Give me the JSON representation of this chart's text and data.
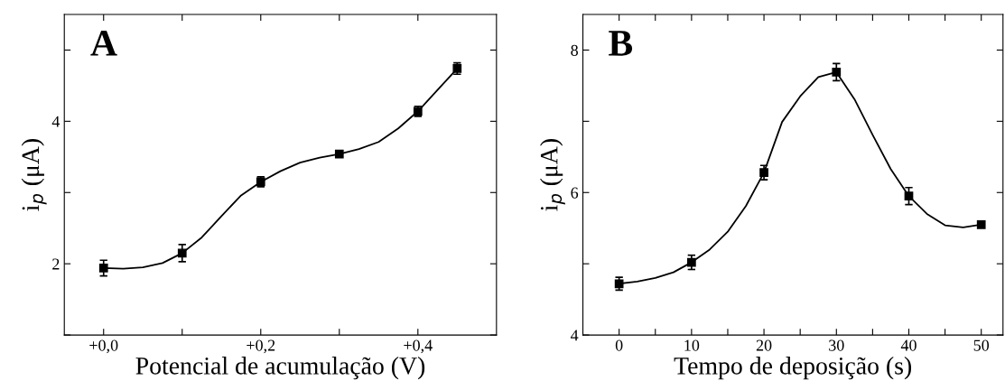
{
  "chart_data": [
    {
      "type": "scatter",
      "xlabel": "Potencial de acumulação (V)",
      "ylabel": "i$_{p}$ (μA)",
      "annotations": [
        "A"
      ],
      "line_style": "solid",
      "grid": false,
      "legend": false,
      "x": [
        0.0,
        0.1,
        0.2,
        0.3,
        0.4,
        0.45
      ],
      "series": [
        {
          "marker": "square",
          "color": "#000000",
          "values": [
            1.94,
            2.15,
            3.15,
            3.54,
            4.14,
            4.74
          ],
          "errors": [
            0.11,
            0.12,
            0.07,
            0.03,
            0.07,
            0.08
          ]
        },
        {
          "type": "line",
          "color": "#000000",
          "x": [
            0.0,
            0.025,
            0.05,
            0.075,
            0.1,
            0.125,
            0.15,
            0.175,
            0.2,
            0.225,
            0.25,
            0.275,
            0.3,
            0.325,
            0.35,
            0.375,
            0.4,
            0.425,
            0.45
          ],
          "values": [
            1.94,
            1.93,
            1.95,
            2.01,
            2.15,
            2.37,
            2.67,
            2.96,
            3.15,
            3.3,
            3.42,
            3.49,
            3.54,
            3.61,
            3.71,
            3.9,
            4.14,
            4.44,
            4.74
          ]
        }
      ],
      "xlim": [
        -0.05,
        0.5
      ],
      "ylim": [
        1.0,
        5.5
      ],
      "xticks": [
        {
          "value": 0.0,
          "label": "+0,0"
        },
        {
          "value": 0.1,
          "label": null
        },
        {
          "value": 0.2,
          "label": "+0,2"
        },
        {
          "value": 0.3,
          "label": null
        },
        {
          "value": 0.4,
          "label": "+0,4"
        }
      ],
      "yticks": [
        {
          "value": 1,
          "label": null
        },
        2,
        {
          "value": 3,
          "label": null
        },
        4,
        {
          "value": 5,
          "label": null
        }
      ]
    },
    {
      "type": "scatter",
      "xlabel": "Tempo de deposição (s)",
      "ylabel": "i$_{p}$ (μA)",
      "annotations": [
        "B"
      ],
      "line_style": "solid",
      "grid": false,
      "legend": false,
      "x": [
        0,
        10,
        20,
        30,
        40,
        50
      ],
      "series": [
        {
          "marker": "square",
          "color": "#000000",
          "values": [
            4.72,
            5.02,
            6.28,
            7.69,
            5.95,
            5.55
          ],
          "errors": [
            0.09,
            0.1,
            0.1,
            0.12,
            0.12,
            0.04
          ]
        },
        {
          "type": "line",
          "color": "#000000",
          "x": [
            0,
            2.5,
            5,
            7.5,
            10,
            12.5,
            15,
            17.5,
            20,
            22.5,
            25,
            27.5,
            30,
            32.5,
            35,
            37.5,
            40,
            42.5,
            45,
            47.5,
            50
          ],
          "values": [
            4.72,
            4.75,
            4.8,
            4.88,
            5.02,
            5.2,
            5.45,
            5.81,
            6.28,
            6.99,
            7.35,
            7.62,
            7.69,
            7.31,
            6.81,
            6.33,
            5.95,
            5.7,
            5.54,
            5.51,
            5.55
          ]
        }
      ],
      "xlim": [
        -5,
        53
      ],
      "ylim": [
        4,
        8.5
      ],
      "xticks": [
        0,
        {
          "value": 5,
          "label": null
        },
        10,
        {
          "value": 15,
          "label": null
        },
        20,
        {
          "value": 25,
          "label": null
        },
        30,
        {
          "value": 35,
          "label": null
        },
        40,
        {
          "value": 45,
          "label": null
        },
        50
      ],
      "yticks": [
        4,
        {
          "value": 5,
          "label": null
        },
        6,
        {
          "value": 7,
          "label": null
        },
        8
      ]
    }
  ]
}
